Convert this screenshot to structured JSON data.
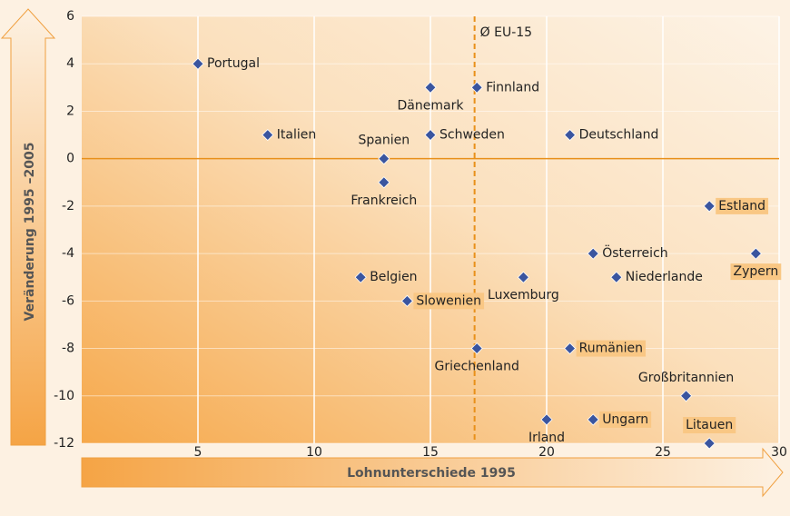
{
  "chart_data": {
    "type": "scatter",
    "x_label": "Lohnunterschiede 1995",
    "y_label": "Veränderung 1995 –2005",
    "xlim": [
      0,
      30
    ],
    "xticks": [
      5,
      10,
      15,
      20,
      25,
      30
    ],
    "ylim": [
      -12,
      6
    ],
    "yticks": [
      6,
      4,
      2,
      0,
      -2,
      -4,
      -6,
      -8,
      -10,
      -12
    ],
    "grid": true,
    "reference_lines": [
      {
        "axis": "x",
        "value": 16.9,
        "label": "Ø EU-15",
        "color": "#e8901a"
      },
      {
        "axis": "y",
        "value": 0,
        "color": "#e8901a"
      }
    ],
    "series": [
      {
        "color": "#3a559f",
        "highlight_color": "#f9c784",
        "labels": [
          "Portugal",
          "Dänemark",
          "Finnland",
          "Italien",
          "Schweden",
          "Deutschland",
          "Spanien",
          "Frankreich",
          "Estland",
          "Österreich",
          "Zypern",
          "Belgien",
          "Luxemburg",
          "Niederlande",
          "Slowenien",
          "Griechenland",
          "Rumänien",
          "Großbritannien",
          "Irland",
          "Ungarn",
          "Litauen"
        ],
        "x": [
          5,
          15,
          17,
          8,
          15,
          21,
          13,
          13,
          27,
          22,
          29,
          12,
          19,
          23,
          14,
          17,
          21,
          26,
          20,
          22,
          27
        ],
        "values": [
          4,
          3,
          3,
          1,
          1,
          1,
          0,
          -1,
          -2,
          -4,
          -4,
          -5,
          -5,
          -5,
          -6,
          -8,
          -8,
          -10,
          -11,
          -11,
          -12
        ],
        "highlight": [
          false,
          false,
          false,
          false,
          false,
          false,
          false,
          false,
          true,
          false,
          true,
          false,
          false,
          false,
          true,
          false,
          true,
          false,
          false,
          true,
          true
        ]
      }
    ]
  }
}
